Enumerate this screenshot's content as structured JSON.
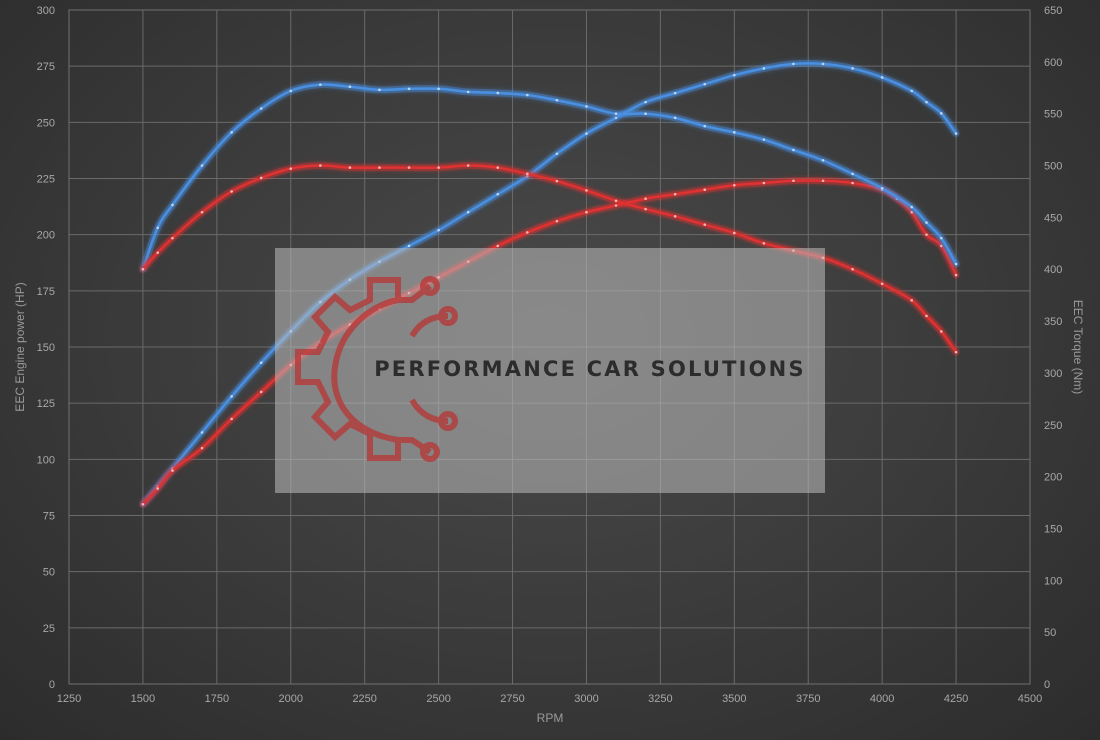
{
  "chart_data": {
    "type": "line",
    "xlabel": "RPM",
    "ylabel_left": "EEC Engine power (HP)",
    "ylabel_right": "EEC Torque (Nm)",
    "xlim": [
      1250,
      4500
    ],
    "x_ticks": [
      1250,
      1500,
      1750,
      2000,
      2250,
      2500,
      2750,
      3000,
      3250,
      3500,
      3750,
      4000,
      4250,
      4500
    ],
    "ylim_left": [
      0,
      300
    ],
    "y_ticks_left": [
      0,
      25,
      50,
      75,
      100,
      125,
      150,
      175,
      200,
      225,
      250,
      275,
      300
    ],
    "ylim_right": [
      0,
      650
    ],
    "y_ticks_right": [
      0,
      50,
      100,
      150,
      200,
      250,
      300,
      350,
      400,
      450,
      500,
      550,
      600,
      650
    ],
    "grid": true,
    "series": [
      {
        "axis": "left",
        "color": "#4a90e2",
        "x": [
          1500,
          1550,
          1600,
          1700,
          1800,
          1900,
          2000,
          2100,
          2200,
          2300,
          2400,
          2500,
          2600,
          2700,
          2800,
          2900,
          3000,
          3100,
          3200,
          3300,
          3400,
          3500,
          3600,
          3700,
          3800,
          3900,
          4000,
          4100,
          4150,
          4200,
          4250
        ],
        "values": [
          80,
          88,
          96,
          112,
          128,
          143,
          157,
          170,
          180,
          188,
          195,
          202,
          210,
          218,
          226,
          236,
          245,
          252,
          259,
          263,
          267,
          271,
          274,
          276,
          276,
          274,
          270,
          264,
          259,
          254,
          245
        ]
      },
      {
        "axis": "left",
        "color": "#e03030",
        "x": [
          1500,
          1550,
          1600,
          1700,
          1800,
          1900,
          2000,
          2100,
          2200,
          2300,
          2400,
          2500,
          2600,
          2700,
          2800,
          2900,
          3000,
          3100,
          3200,
          3300,
          3400,
          3500,
          3600,
          3700,
          3800,
          3900,
          4000,
          4050,
          4100,
          4150,
          4200,
          4250
        ],
        "values": [
          80,
          87,
          95,
          105,
          118,
          130,
          142,
          152,
          160,
          167,
          174,
          181,
          188,
          195,
          201,
          206,
          210,
          213,
          216,
          218,
          220,
          222,
          223,
          224,
          224,
          223,
          220,
          216,
          210,
          200,
          195,
          182
        ]
      },
      {
        "axis": "right",
        "color": "#4a90e2",
        "x": [
          1500,
          1550,
          1600,
          1700,
          1800,
          1900,
          2000,
          2100,
          2200,
          2300,
          2400,
          2500,
          2600,
          2700,
          2800,
          2900,
          3000,
          3100,
          3200,
          3300,
          3400,
          3500,
          3600,
          3700,
          3800,
          3900,
          4000,
          4100,
          4150,
          4200,
          4250
        ],
        "values": [
          400,
          440,
          462,
          500,
          532,
          555,
          572,
          578,
          576,
          573,
          574,
          574,
          571,
          570,
          568,
          563,
          557,
          550,
          550,
          546,
          538,
          532,
          525,
          515,
          505,
          492,
          478,
          460,
          445,
          430,
          405
        ]
      },
      {
        "axis": "right",
        "color": "#e03030",
        "x": [
          1500,
          1550,
          1600,
          1700,
          1800,
          1900,
          2000,
          2100,
          2200,
          2300,
          2400,
          2500,
          2600,
          2700,
          2800,
          2900,
          3000,
          3100,
          3200,
          3300,
          3400,
          3500,
          3600,
          3700,
          3800,
          3900,
          4000,
          4100,
          4150,
          4200,
          4250
        ],
        "values": [
          400,
          416,
          430,
          455,
          475,
          488,
          497,
          500,
          498,
          498,
          498,
          498,
          500,
          498,
          492,
          485,
          476,
          466,
          458,
          451,
          443,
          435,
          425,
          418,
          411,
          400,
          386,
          370,
          355,
          340,
          320
        ]
      }
    ]
  },
  "watermark": {
    "brand_text": "PERFORMANCE CAR SOLUTIONS",
    "logo_icon": "gear-circuit-icon",
    "logo_color": "#c03030"
  }
}
